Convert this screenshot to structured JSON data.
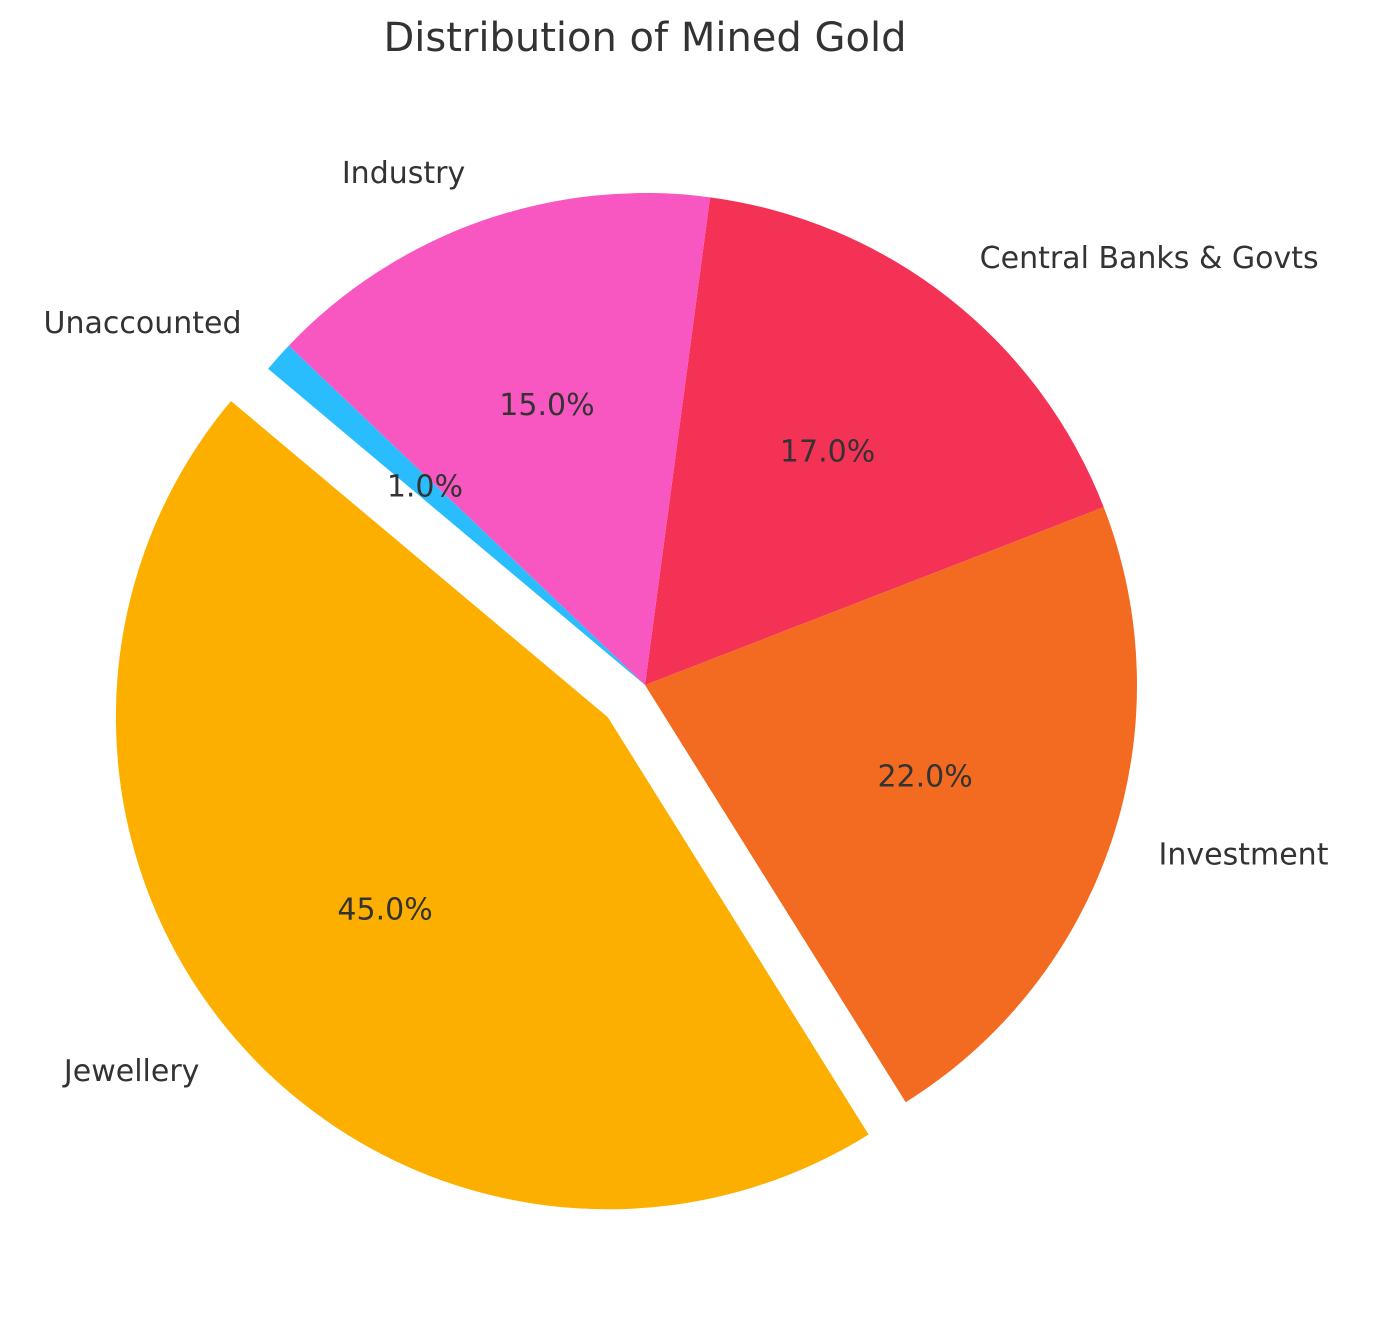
{
  "chart_data": {
    "type": "pie",
    "title": "Distribution of Mined Gold",
    "categories": [
      "Jewellery",
      "Investment",
      "Central Banks & Govts",
      "Industry",
      "Unaccounted"
    ],
    "values": [
      45,
      22,
      17,
      15,
      1
    ],
    "value_labels": [
      "45.0%",
      "22.0%",
      "17.0%",
      "15.0%",
      "1.0%"
    ],
    "colors": [
      "#fdaf00",
      "#f26b21",
      "#f43256",
      "#f857c1",
      "#29bdfd"
    ]
  }
}
